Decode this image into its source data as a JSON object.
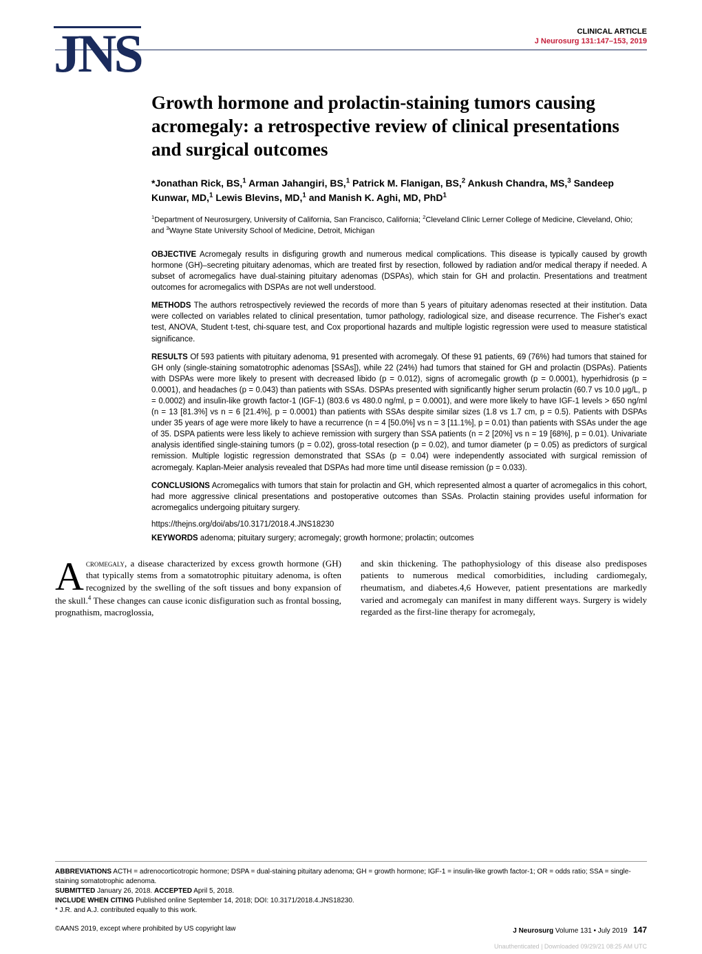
{
  "header": {
    "logo": "JNS",
    "article_type": "CLINICAL ARTICLE",
    "journal_ref": "J Neurosurg 131:147–153, 2019"
  },
  "title": "Growth hormone and prolactin-staining tumors causing acromegaly: a retrospective review of clinical presentations and surgical outcomes",
  "authors_html": "*Jonathan Rick, BS,<sup>1</sup> Arman Jahangiri, BS,<sup>1</sup> Patrick M. Flanigan, BS,<sup>2</sup> Ankush Chandra, MS,<sup>3</sup> Sandeep Kunwar, MD,<sup>1</sup> Lewis Blevins, MD,<sup>1</sup> and Manish K. Aghi, MD, PhD<sup>1</sup>",
  "affiliations_html": "<sup>1</sup>Department of Neurosurgery, University of California, San Francisco, California; <sup>2</sup>Cleveland Clinic Lerner College of Medicine, Cleveland, Ohio; and <sup>3</sup>Wayne State University School of Medicine, Detroit, Michigan",
  "abstract": {
    "objective_label": "OBJECTIVE",
    "objective": " Acromegaly results in disfiguring growth and numerous medical complications. This disease is typically caused by growth hormone (GH)–secreting pituitary adenomas, which are treated first by resection, followed by radiation and/or medical therapy if needed. A subset of acromegalics have dual-staining pituitary adenomas (DSPAs), which stain for GH and prolactin. Presentations and treatment outcomes for acromegalics with DSPAs are not well understood.",
    "methods_label": "METHODS",
    "methods": " The authors retrospectively reviewed the records of more than 5 years of pituitary adenomas resected at their institution. Data were collected on variables related to clinical presentation, tumor pathology, radiological size, and disease recurrence. The Fisher's exact test, ANOVA, Student t-test, chi-square test, and Cox proportional hazards and multiple logistic regression were used to measure statistical significance.",
    "results_label": "RESULTS",
    "results": " Of 593 patients with pituitary adenoma, 91 presented with acromegaly. Of these 91 patients, 69 (76%) had tumors that stained for GH only (single-staining somatotrophic adenomas [SSAs]), while 22 (24%) had tumors that stained for GH and prolactin (DSPAs). Patients with DSPAs were more likely to present with decreased libido (p = 0.012), signs of acromegalic growth (p = 0.0001), hyperhidrosis (p = 0.0001), and headaches (p = 0.043) than patients with SSAs. DSPAs presented with significantly higher serum prolactin (60.7 vs 10.0 μg/L, p = 0.0002) and insulin-like growth factor-1 (IGF-1) (803.6 vs 480.0 ng/ml, p = 0.0001), and were more likely to have IGF-1 levels > 650 ng/ml (n = 13 [81.3%] vs n = 6 [21.4%], p = 0.0001) than patients with SSAs despite similar sizes (1.8 vs 1.7 cm, p = 0.5). Patients with DSPAs under 35 years of age were more likely to have a recurrence (n = 4 [50.0%] vs n = 3 [11.1%], p = 0.01) than patients with SSAs under the age of 35. DSPA patients were less likely to achieve remission with surgery than SSA patients (n = 2 [20%] vs n = 19 [68%], p = 0.01). Univariate analysis identified single-staining tumors (p = 0.02), gross-total resection (p = 0.02), and tumor diameter (p = 0.05) as predictors of surgical remission. Multiple logistic regression demonstrated that SSAs (p = 0.04) were independently associated with surgical remission of acromegaly. Kaplan-Meier analysis revealed that DSPAs had more time until disease remission (p = 0.033).",
    "conclusions_label": "CONCLUSIONS",
    "conclusions": " Acromegalics with tumors that stain for prolactin and GH, which represented almost a quarter of acromegalics in this cohort, had more aggressive clinical presentations and postoperative outcomes than SSAs. Prolactin staining provides useful information for acromegalics undergoing pituitary surgery."
  },
  "doi": "https://thejns.org/doi/abs/10.3171/2018.4.JNS18230",
  "keywords_label": "KEYWORDS",
  "keywords": " adenoma; pituitary surgery; acromegaly; growth hormone; prolactin; outcomes",
  "body": {
    "dropcap": "A",
    "col1_html": "<span class=\"smallcaps\">cromegaly</span>, a disease characterized by excess growth hormone (GH) that typically stems from a somatotrophic pituitary adenoma, is often recognized by the swelling of the soft tissues and bony expansion of the skull.<sup>4</sup> These changes can cause iconic disfiguration such as frontal bossing, prognathism, macroglossia,",
    "col2": "and skin thickening. The pathophysiology of this disease also predisposes patients to numerous medical comorbidities, including cardiomegaly, rheumatism, and diabetes.4,6 However, patient presentations are markedly varied and acromegaly can manifest in many different ways. Surgery is widely regarded as the first-line therapy for acromegaly,"
  },
  "footer": {
    "abbrev_label": "ABBREVIATIONS",
    "abbrev": " ACTH = adrenocorticotropic hormone; DSPA = dual-staining pituitary adenoma; GH = growth hormone; IGF-1 = insulin-like growth factor-1; OR = odds ratio; SSA = single-staining somatotrophic adenoma.",
    "submitted_label": "SUBMITTED",
    "submitted": " January 26, 2018. ",
    "accepted_label": "ACCEPTED",
    "accepted": " April 5, 2018.",
    "include_label": "INCLUDE WHEN CITING",
    "include": " Published online September 14, 2018; DOI: 10.3171/2018.4.JNS18230.",
    "contrib": "* J.R. and A.J. contributed equally to this work."
  },
  "page_footer": {
    "copyright": "©AANS 2019, except where prohibited by US copyright law",
    "journal": "J Neurosurg",
    "issue": " Volume 131 • July 2019",
    "page": "147"
  },
  "watermark": "Unauthenticated | Downloaded 09/29/21 08:25 AM UTC"
}
